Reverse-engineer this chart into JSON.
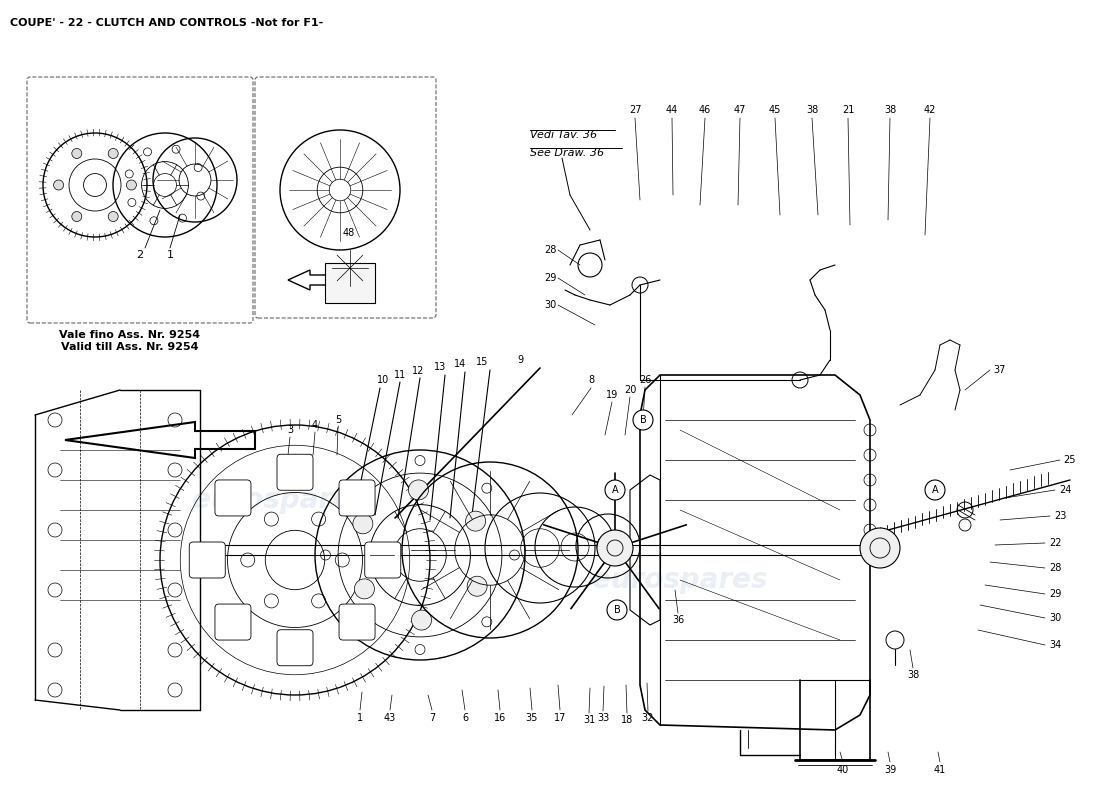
{
  "title": "COUPE' - 22 - CLUTCH AND CONTROLS -Not for F1-",
  "background_color": "#ffffff",
  "title_fontsize": 8,
  "watermark_text": "eurospares",
  "watermark_color": "#c8d8e8",
  "watermark_alpha": 0.4,
  "line_color": "#000000",
  "number_fontsize": 7,
  "inset1_label_line1": "Vale fino Ass. Nr. 9254",
  "inset1_label_line2": "Valid till Ass. Nr. 9254",
  "see_draw_line1": "Vedi Tav. 36",
  "see_draw_line2": "See Draw. 36"
}
